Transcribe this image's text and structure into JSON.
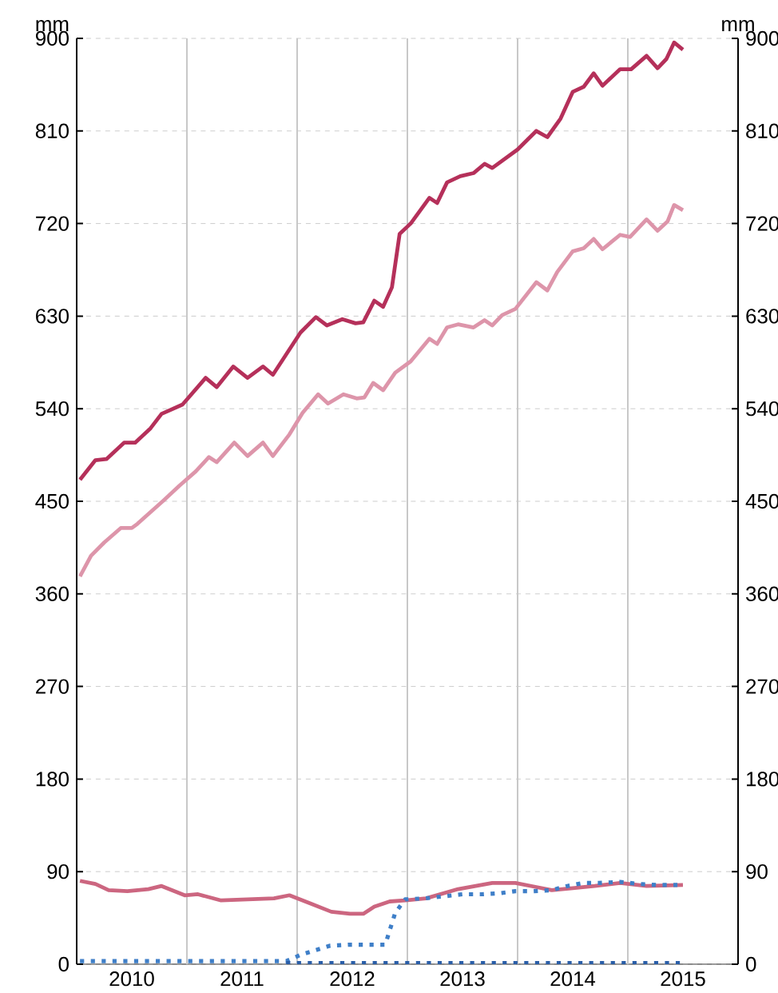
{
  "chart_data": {
    "type": "line",
    "ylabel": "mm",
    "y2label": "mm",
    "xlim": [
      2010,
      2016
    ],
    "xticks": [
      {
        "value": 2010.5,
        "label": "2010"
      },
      {
        "value": 2011.5,
        "label": "2011"
      },
      {
        "value": 2012.5,
        "label": "2012"
      },
      {
        "value": 2013.5,
        "label": "2013"
      },
      {
        "value": 2014.5,
        "label": "2014"
      },
      {
        "value": 2015.5,
        "label": "2015"
      }
    ],
    "ylim": [
      0,
      900
    ],
    "yticks": [
      0,
      90,
      180,
      270,
      360,
      450,
      540,
      630,
      720,
      810,
      900
    ],
    "y2lim": [
      0,
      900
    ],
    "y2ticks": [
      0,
      90,
      180,
      270,
      360,
      450,
      540,
      630,
      720,
      810,
      900
    ],
    "grid": "y",
    "ref_lines": [
      {
        "axis": "x",
        "value": 2011,
        "color": "#c8c8c8"
      },
      {
        "axis": "x",
        "value": 2012,
        "color": "#c8c8c8"
      },
      {
        "axis": "x",
        "value": 2013,
        "color": "#c8c8c8"
      },
      {
        "axis": "x",
        "value": 2014,
        "color": "#c8c8c8"
      },
      {
        "axis": "x",
        "value": 2015,
        "color": "#c8c8c8"
      }
    ],
    "series": [
      {
        "color": "#b5305a",
        "line_style": "solid",
        "x": [
          2010.03,
          2010.17,
          2010.27,
          2010.43,
          2010.53,
          2010.67,
          2010.77,
          2010.96,
          2011.17,
          2011.27,
          2011.42,
          2011.55,
          2011.69,
          2011.78,
          2012.03,
          2012.17,
          2012.27,
          2012.41,
          2012.53,
          2012.6,
          2012.7,
          2012.78,
          2012.86,
          2012.93,
          2013.03,
          2013.2,
          2013.27,
          2013.36,
          2013.48,
          2013.6,
          2013.7,
          2013.77,
          2014.0,
          2014.17,
          2014.27,
          2014.39,
          2014.5,
          2014.6,
          2014.69,
          2014.77,
          2014.93,
          2015.03,
          2015.17,
          2015.27,
          2015.35,
          2015.42,
          2015.5
        ],
        "values": [
          471,
          490,
          491,
          507,
          507,
          521,
          535,
          544,
          570,
          561,
          581,
          570,
          581,
          573,
          614,
          629,
          621,
          627,
          623,
          624,
          645,
          639,
          658,
          710,
          720,
          745,
          740,
          760,
          766,
          769,
          778,
          774,
          792,
          810,
          804,
          822,
          848,
          853,
          866,
          854,
          870,
          870,
          883,
          871,
          880,
          896,
          889
        ]
      },
      {
        "color": "#dd95aa",
        "line_style": "solid",
        "x": [
          2010.03,
          2010.13,
          2010.25,
          2010.4,
          2010.5,
          2010.55,
          2010.79,
          2010.93,
          2011.08,
          2011.2,
          2011.27,
          2011.43,
          2011.55,
          2011.69,
          2011.78,
          2011.93,
          2012.05,
          2012.19,
          2012.28,
          2012.42,
          2012.54,
          2012.61,
          2012.69,
          2012.78,
          2012.89,
          2013.03,
          2013.2,
          2013.27,
          2013.36,
          2013.46,
          2013.6,
          2013.7,
          2013.77,
          2013.86,
          2013.98,
          2014.17,
          2014.27,
          2014.36,
          2014.5,
          2014.6,
          2014.69,
          2014.77,
          2014.93,
          2015.02,
          2015.17,
          2015.27,
          2015.36,
          2015.42,
          2015.5
        ],
        "values": [
          377,
          397,
          410,
          424,
          424,
          428,
          451,
          465,
          479,
          493,
          488,
          507,
          494,
          507,
          494,
          515,
          536,
          554,
          545,
          554,
          550,
          551,
          565,
          558,
          575,
          586,
          608,
          603,
          619,
          622,
          619,
          626,
          621,
          631,
          637,
          663,
          655,
          673,
          693,
          696,
          705,
          695,
          709,
          707,
          724,
          713,
          722,
          738,
          733
        ]
      },
      {
        "color": "#cc6680",
        "line_style": "solid",
        "x": [
          2010.03,
          2010.17,
          2010.29,
          2010.46,
          2010.65,
          2010.77,
          2010.98,
          2011.1,
          2011.31,
          2011.55,
          2011.79,
          2011.93,
          2012.12,
          2012.31,
          2012.48,
          2012.6,
          2012.7,
          2012.84,
          2012.98,
          2013.17,
          2013.46,
          2013.77,
          2013.98,
          2014.17,
          2014.31,
          2014.5,
          2014.7,
          2014.93,
          2015.17,
          2015.5
        ],
        "values": [
          81,
          78,
          72,
          71,
          73,
          76,
          67,
          68,
          62,
          63,
          64,
          67,
          59,
          51,
          49,
          49,
          56,
          61,
          62,
          64,
          73,
          79,
          79,
          75,
          72,
          74,
          76,
          79,
          76,
          77
        ]
      },
      {
        "color": "#3f7fc8",
        "line_style": "dotted",
        "x": [
          2010.03,
          2010.5,
          2011.0,
          2011.5,
          2011.9,
          2012.03,
          2012.12,
          2012.3,
          2012.48,
          2012.8,
          2012.84,
          2012.89,
          2012.98,
          2013.16,
          2013.33,
          2013.5,
          2013.67,
          2013.84,
          2013.98,
          2014.14,
          2014.31,
          2014.45,
          2014.6,
          2014.74,
          2014.93,
          2015.1,
          2015.26,
          2015.45
        ],
        "values": [
          3,
          3,
          3,
          3,
          3,
          9,
          12,
          18,
          19,
          19,
          33,
          50,
          63,
          64,
          66,
          68,
          68,
          69,
          71,
          71,
          72,
          76,
          79,
          79,
          80,
          78,
          77,
          77
        ]
      },
      {
        "color": "#2a5ea8",
        "line_style": "dotted",
        "x": [
          2011.9,
          2012.5,
          2013.0,
          2013.5,
          2014.0,
          2014.5,
          2015.0,
          2015.5
        ],
        "values": [
          1,
          1,
          1,
          1,
          1,
          1,
          1,
          1
        ]
      }
    ]
  }
}
